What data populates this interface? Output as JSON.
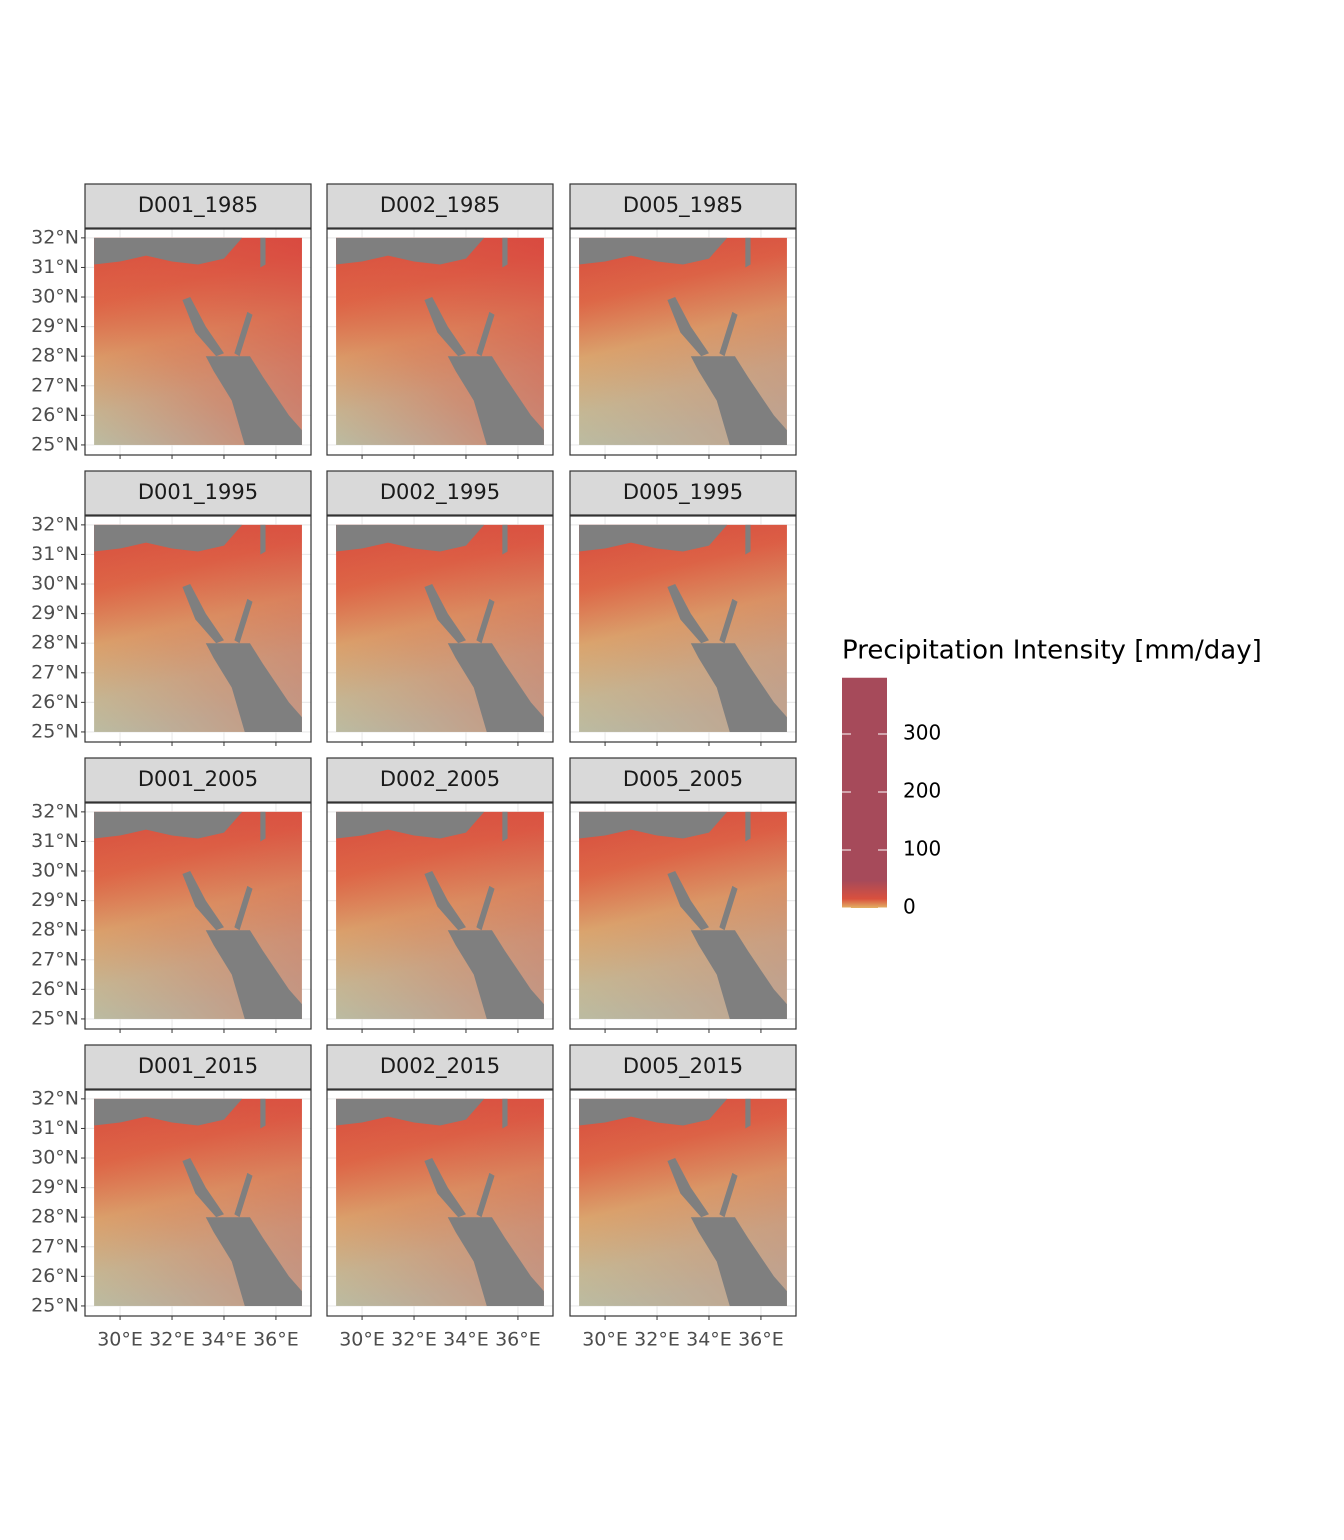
{
  "panels": [
    {
      "label": "D001_1985"
    },
    {
      "label": "D002_1985"
    },
    {
      "label": "D005_1985"
    },
    {
      "label": "D001_1995"
    },
    {
      "label": "D002_1995"
    },
    {
      "label": "D005_1995"
    },
    {
      "label": "D001_2005"
    },
    {
      "label": "D002_2005"
    },
    {
      "label": "D005_2005"
    },
    {
      "label": "D001_2015"
    },
    {
      "label": "D002_2015"
    },
    {
      "label": "D005_2015"
    }
  ],
  "y_axis": {
    "lim": [
      24.66,
      32.3
    ],
    "ticks": [
      {
        "value": 32,
        "label": "32°N"
      },
      {
        "value": 31,
        "label": "31°N"
      },
      {
        "value": 30,
        "label": "30°N"
      },
      {
        "value": 29,
        "label": "29°N"
      },
      {
        "value": 28,
        "label": "28°N"
      },
      {
        "value": 27,
        "label": "27°N"
      },
      {
        "value": 26,
        "label": "26°N"
      },
      {
        "value": 25,
        "label": "25°N"
      }
    ]
  },
  "x_axis": {
    "lim": [
      28.65,
      37.35
    ],
    "ticks": [
      {
        "value": 30,
        "label": "30°E"
      },
      {
        "value": 32,
        "label": "32°E"
      },
      {
        "value": 34,
        "label": "34°E"
      },
      {
        "value": 36,
        "label": "36°E"
      }
    ]
  },
  "legend": {
    "title": "Precipitation Intensity [mm/day]",
    "range": [
      0,
      397
    ],
    "ticks": [
      0,
      100,
      200,
      300
    ],
    "colors": [
      "#e3b264",
      "#d9503e",
      "#a64a5a"
    ]
  }
}
